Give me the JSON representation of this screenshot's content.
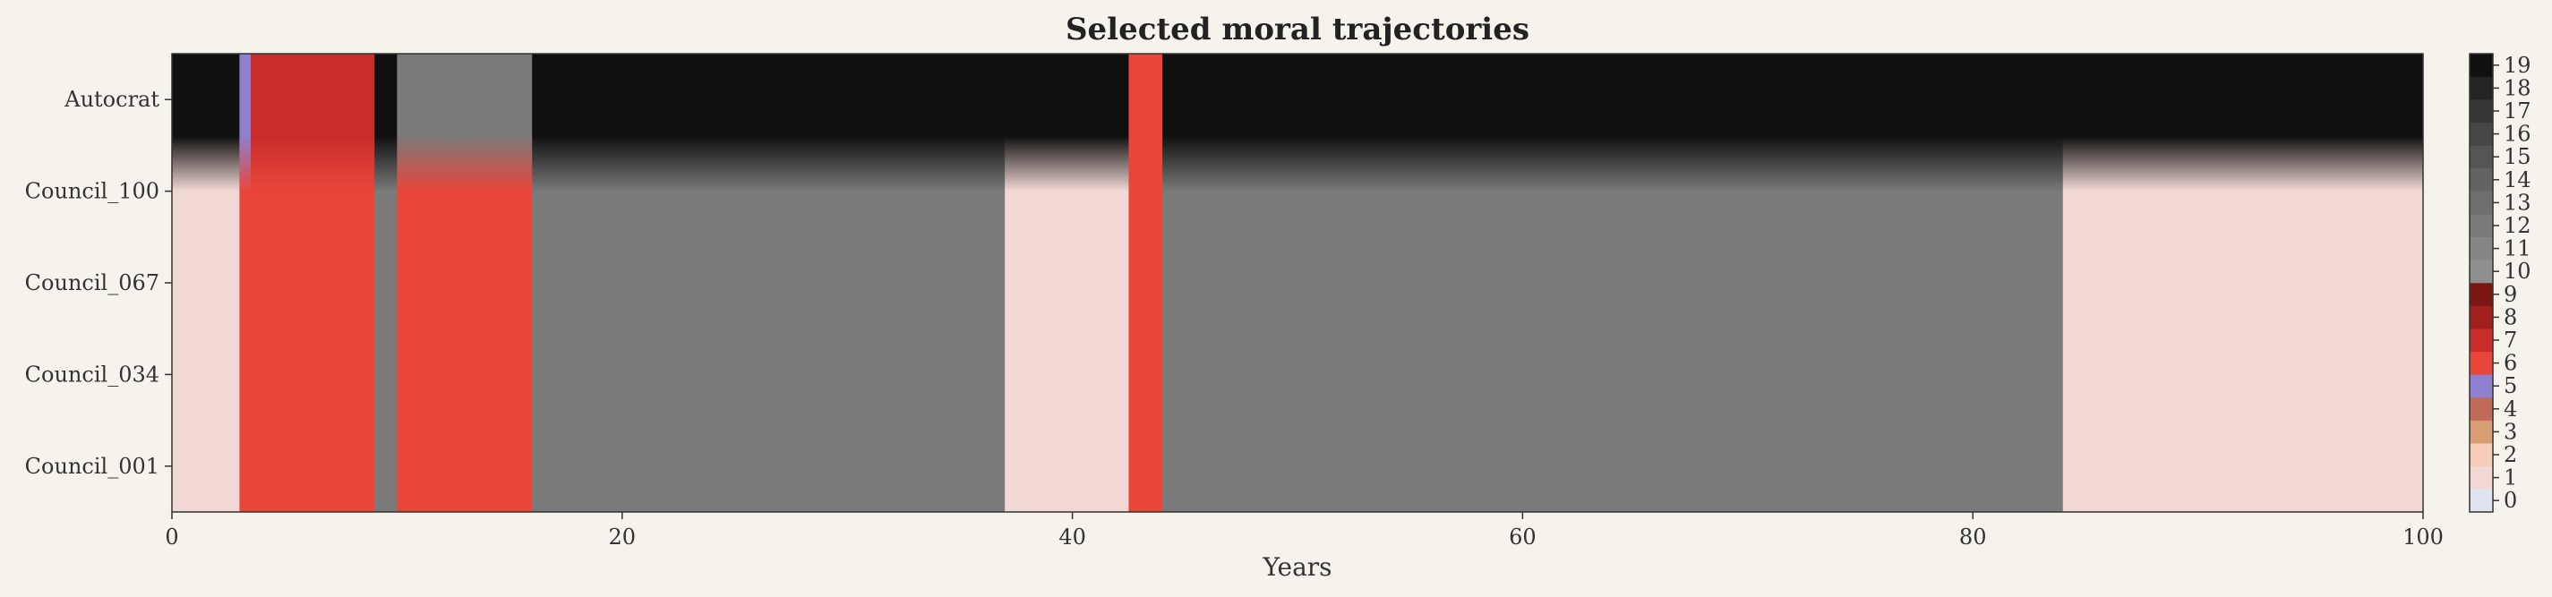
{
  "chart_data": {
    "type": "heatmap",
    "title": "Selected moral trajectories",
    "xlabel": "Years",
    "ylabel": "",
    "xlim": [
      0,
      100
    ],
    "x_ticks": [
      0,
      20,
      40,
      60,
      80,
      100
    ],
    "rows": [
      "Autocrat",
      "Council_100",
      "Council_067",
      "Council_034",
      "Council_001"
    ],
    "colorbar": {
      "levels": [
        0,
        1,
        2,
        3,
        4,
        5,
        6,
        7,
        8,
        9,
        10,
        11,
        12,
        13,
        14,
        15,
        16,
        17,
        18,
        19
      ],
      "colors": [
        "#dfe4ee",
        "#f2d8d4",
        "#f5cdb8",
        "#d89d72",
        "#c06a5a",
        "#8f7fd0",
        "#e8463a",
        "#c92d2a",
        "#a0201d",
        "#7a1614",
        "#8f8f8f",
        "#858585",
        "#7a7a7a",
        "#6f6f6f",
        "#636363",
        "#555555",
        "#464646",
        "#363636",
        "#242424",
        "#101010"
      ]
    },
    "segments": [
      {
        "start": 0.0,
        "end": 3.0,
        "bottom": 1,
        "top": 19
      },
      {
        "start": 3.0,
        "end": 3.5,
        "bottom": 6,
        "top": 5
      },
      {
        "start": 3.5,
        "end": 9.0,
        "bottom": 6,
        "top": 7
      },
      {
        "start": 9.0,
        "end": 10.0,
        "bottom": 12,
        "top": 19
      },
      {
        "start": 10.0,
        "end": 16.0,
        "bottom": 6,
        "top": 12
      },
      {
        "start": 16.0,
        "end": 22.0,
        "bottom": 12,
        "top": 19
      },
      {
        "start": 22.0,
        "end": 30.0,
        "bottom": 12,
        "top": 19
      },
      {
        "start": 30.0,
        "end": 37.0,
        "bottom": 12,
        "top": 19
      },
      {
        "start": 37.0,
        "end": 42.5,
        "bottom": 1,
        "top": 19
      },
      {
        "start": 42.5,
        "end": 44.0,
        "bottom": 6,
        "top": 6
      },
      {
        "start": 44.0,
        "end": 60.0,
        "bottom": 12,
        "top": 19
      },
      {
        "start": 60.0,
        "end": 66.0,
        "bottom": 12,
        "top": 19
      },
      {
        "start": 66.0,
        "end": 84.0,
        "bottom": 12,
        "top": 19
      },
      {
        "start": 84.0,
        "end": 100.0,
        "bottom": 1,
        "top": 19
      }
    ]
  }
}
